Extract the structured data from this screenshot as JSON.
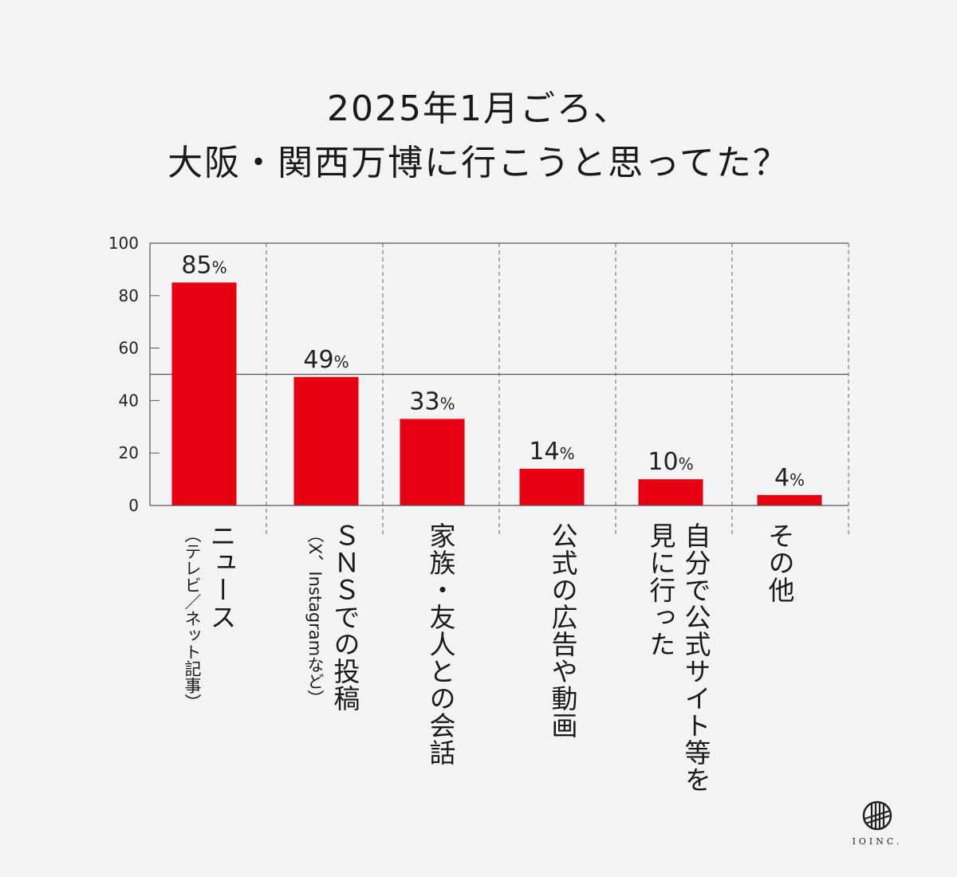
{
  "title": [
    "2025年1月ごろ、",
    "大阪・関西万博に行こうと思ってた？"
  ],
  "colors": {
    "bar": "#e60012",
    "background": "#f4f4f4",
    "axis": "#555555"
  },
  "chart_data": {
    "type": "bar",
    "title": "2025年1月ごろ、大阪・関西万博に行こうと思ってた？",
    "categories": [
      {
        "label": "ニュース",
        "sub": "（テレビ／ネット記事）"
      },
      {
        "label": "ＳＮＳでの投稿",
        "sub": "（X、Instagramなど）"
      },
      {
        "label": "家族・友人との会話",
        "sub": ""
      },
      {
        "label": "公式の広告や動画",
        "sub": ""
      },
      {
        "label": "自分で公式サイト等を\n見に行った",
        "sub": ""
      },
      {
        "label": "その他",
        "sub": ""
      }
    ],
    "values": [
      85,
      49,
      33,
      14,
      10,
      4
    ],
    "value_labels": [
      "85",
      "49",
      "33",
      "14",
      "10",
      "4"
    ],
    "unit": "%",
    "ylim": [
      0,
      100
    ],
    "yticks": [
      "0",
      "20",
      "40",
      "60",
      "80",
      "100"
    ],
    "reference_line": 50,
    "xlabel": "",
    "ylabel": ""
  },
  "logo": {
    "text": "IOINC."
  }
}
